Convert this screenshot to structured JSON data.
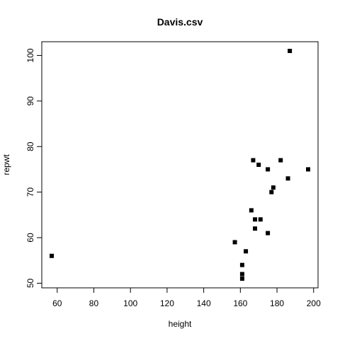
{
  "chart_data": {
    "type": "scatter",
    "title": "Davis.csv",
    "xlabel": "height",
    "ylabel": "repwt",
    "xlim": [
      57,
      197
    ],
    "ylim": [
      51,
      101
    ],
    "xticks": [
      60,
      80,
      100,
      120,
      140,
      160,
      180,
      200
    ],
    "yticks": [
      50,
      60,
      70,
      80,
      90,
      100
    ],
    "grid": false,
    "legend": "none",
    "marker_color": "#000000",
    "points": [
      {
        "x": 57,
        "y": 56
      },
      {
        "x": 157,
        "y": 59
      },
      {
        "x": 161,
        "y": 51
      },
      {
        "x": 161,
        "y": 52
      },
      {
        "x": 161,
        "y": 54
      },
      {
        "x": 163,
        "y": 57
      },
      {
        "x": 166,
        "y": 66
      },
      {
        "x": 167,
        "y": 77
      },
      {
        "x": 168,
        "y": 64
      },
      {
        "x": 168,
        "y": 62
      },
      {
        "x": 170,
        "y": 76
      },
      {
        "x": 171,
        "y": 64
      },
      {
        "x": 175,
        "y": 75
      },
      {
        "x": 175,
        "y": 61
      },
      {
        "x": 177,
        "y": 70
      },
      {
        "x": 178,
        "y": 71
      },
      {
        "x": 182,
        "y": 77
      },
      {
        "x": 186,
        "y": 73
      },
      {
        "x": 187,
        "y": 101
      },
      {
        "x": 197,
        "y": 75
      }
    ]
  }
}
